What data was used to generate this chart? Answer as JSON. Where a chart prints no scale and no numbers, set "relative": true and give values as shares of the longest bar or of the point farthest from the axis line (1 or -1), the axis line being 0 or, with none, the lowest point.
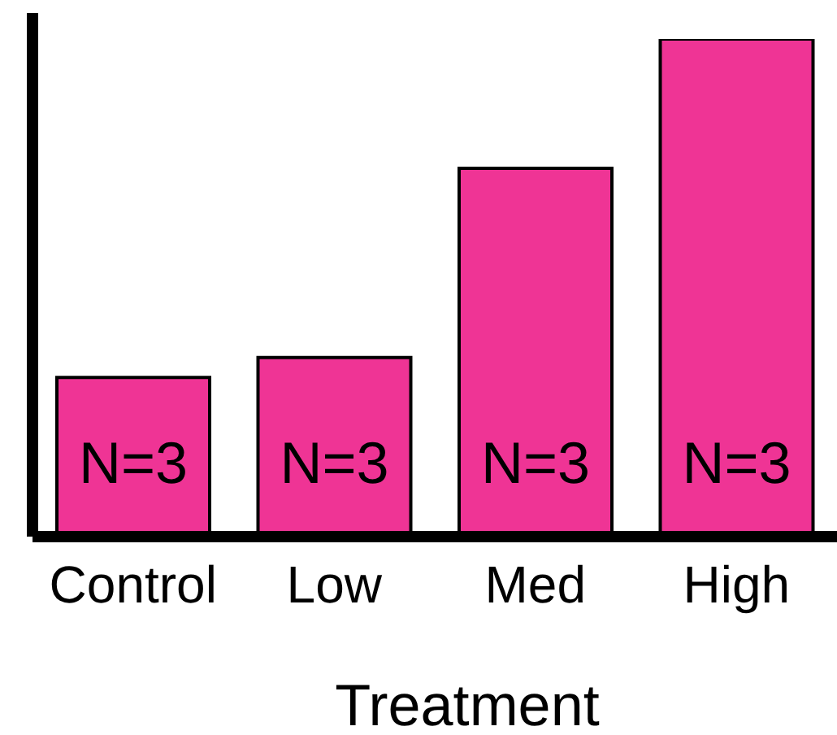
{
  "chart_data": {
    "type": "bar",
    "xlabel": "Treatment",
    "categories": [
      "Control",
      "Low",
      "Med",
      "High"
    ],
    "values": [
      0.32,
      0.36,
      0.74,
      1
    ],
    "color": "#ef3495",
    "relative": true,
    "annotations": [
      "N=3",
      "N=3",
      "N=3",
      "N=3"
    ]
  }
}
